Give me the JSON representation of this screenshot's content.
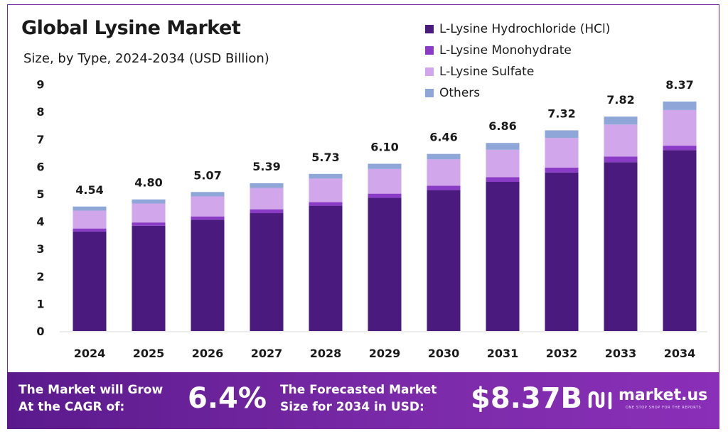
{
  "title": "Global Lysine Market",
  "subtitle": "Size, by Type, 2024-2034 (USD Billion)",
  "colors": {
    "hcl": "#4a1a7e",
    "monohydrate": "#8a3cc6",
    "sulfate": "#d2a6ea",
    "others": "#8fa6d8",
    "banner": "#6a1fa0"
  },
  "legend": [
    {
      "label": "L-Lysine Hydrochloride (HCl)",
      "color": "#4a1a7e"
    },
    {
      "label": "L-Lysine Monohydrate",
      "color": "#8a3cc6"
    },
    {
      "label": "L-Lysine Sulfate",
      "color": "#d2a6ea"
    },
    {
      "label": "Others",
      "color": "#8fa6d8"
    }
  ],
  "chart_data": {
    "type": "bar",
    "stacked": true,
    "title": "Global Lysine Market",
    "subtitle": "Size, by Type, 2024-2034 (USD Billion)",
    "categories": [
      "2024",
      "2025",
      "2026",
      "2027",
      "2028",
      "2029",
      "2030",
      "2031",
      "2032",
      "2033",
      "2034"
    ],
    "series": [
      {
        "name": "L-Lysine Hydrochloride (HCl)",
        "color": "#4a1a7e",
        "values": [
          3.63,
          3.84,
          4.06,
          4.3,
          4.57,
          4.86,
          5.14,
          5.44,
          5.78,
          6.16,
          6.6
        ]
      },
      {
        "name": "L-Lysine Monohydrate",
        "color": "#8a3cc6",
        "values": [
          0.11,
          0.12,
          0.12,
          0.14,
          0.13,
          0.15,
          0.16,
          0.17,
          0.18,
          0.2,
          0.16
        ]
      },
      {
        "name": "L-Lysine Sulfate",
        "color": "#d2a6ea",
        "values": [
          0.65,
          0.69,
          0.73,
          0.78,
          0.86,
          0.9,
          0.96,
          1.0,
          1.08,
          1.17,
          1.3
        ]
      },
      {
        "name": "Others",
        "color": "#8fa6d8",
        "values": [
          0.15,
          0.15,
          0.16,
          0.17,
          0.17,
          0.19,
          0.2,
          0.25,
          0.28,
          0.29,
          0.31
        ]
      }
    ],
    "totals": [
      "4.54",
      "4.80",
      "5.07",
      "5.39",
      "5.73",
      "6.10",
      "6.46",
      "6.86",
      "7.32",
      "7.82",
      "8.37"
    ],
    "y_ticks": [
      "0",
      "1",
      "2",
      "3",
      "4",
      "5",
      "6",
      "7",
      "8",
      "9"
    ],
    "ylim": [
      0,
      9
    ],
    "xlabel": "",
    "ylabel": "",
    "grid": false,
    "legend_position": "top-right"
  },
  "banner": {
    "cagr_text_line1": "The Market will Grow",
    "cagr_text_line2": "At the CAGR of:",
    "cagr_value": "6.4%",
    "forecast_text_line1": "The Forecasted Market",
    "forecast_text_line2": "Size for 2034 in USD:",
    "forecast_value": "$8.37B",
    "logo_text": "market.us",
    "logo_tagline": "ONE STOP SHOP FOR THE REPORTS"
  }
}
